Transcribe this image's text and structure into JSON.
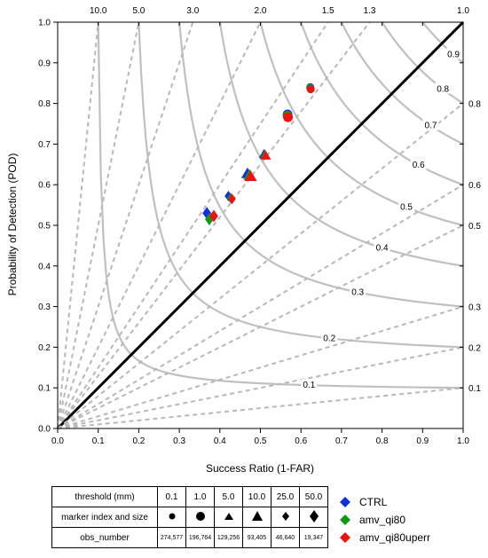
{
  "chart_data": {
    "type": "scatter",
    "title": "",
    "xlabel": "Success Ratio (1-FAR)",
    "ylabel": "Probability of Detection (POD)",
    "xlim": [
      0,
      1
    ],
    "ylim": [
      0,
      1
    ],
    "x_ticks": [
      "0.0",
      "0.1",
      "0.2",
      "0.3",
      "0.4",
      "0.5",
      "0.6",
      "0.7",
      "0.8",
      "0.9",
      "1.0"
    ],
    "y_ticks": [
      "0.0",
      "0.1",
      "0.2",
      "0.3",
      "0.4",
      "0.5",
      "0.6",
      "0.7",
      "0.8",
      "0.9",
      "1.0"
    ],
    "bias_lines": [
      {
        "value": 10.0,
        "label": "10.0"
      },
      {
        "value": 5.0,
        "label": "5.0"
      },
      {
        "value": 3.0,
        "label": "3.0"
      },
      {
        "value": 2.0,
        "label": "2.0"
      },
      {
        "value": 1.5,
        "label": "1.5"
      },
      {
        "value": 1.3,
        "label": "1.3"
      },
      {
        "value": 1.0,
        "label": "1.0"
      },
      {
        "value": 0.8,
        "label": "0.8"
      },
      {
        "value": 0.6,
        "label": "0.6"
      },
      {
        "value": 0.5,
        "label": "0.5"
      },
      {
        "value": 0.3,
        "label": "0.3"
      },
      {
        "value": 0.2,
        "label": "0.2"
      },
      {
        "value": 0.1,
        "label": "0.1"
      }
    ],
    "csi_contours": [
      "0.1",
      "0.2",
      "0.3",
      "0.4",
      "0.5",
      "0.6",
      "0.7",
      "0.8",
      "0.9"
    ],
    "thresholds": [
      "0.1",
      "1.0",
      "5.0",
      "10.0",
      "25.0",
      "50.0"
    ],
    "series": [
      {
        "name": "CTRL",
        "color": "#1030e0",
        "points": [
          {
            "x": 0.623,
            "y": 0.84
          },
          {
            "x": 0.567,
            "y": 0.773
          },
          {
            "x": 0.509,
            "y": 0.675
          },
          {
            "x": 0.468,
            "y": 0.627
          },
          {
            "x": 0.421,
            "y": 0.572
          },
          {
            "x": 0.368,
            "y": 0.53
          }
        ]
      },
      {
        "name": "amv_qi80",
        "color": "#119911",
        "points": [
          {
            "x": 0.623,
            "y": 0.838
          },
          {
            "x": 0.567,
            "y": 0.77
          },
          {
            "x": 0.511,
            "y": 0.673
          },
          {
            "x": 0.473,
            "y": 0.623
          },
          {
            "x": 0.427,
            "y": 0.567
          },
          {
            "x": 0.374,
            "y": 0.515
          }
        ]
      },
      {
        "name": "amv_qi80uperr",
        "color": "#ee1111",
        "points": [
          {
            "x": 0.624,
            "y": 0.835
          },
          {
            "x": 0.568,
            "y": 0.766
          },
          {
            "x": 0.513,
            "y": 0.671
          },
          {
            "x": 0.476,
            "y": 0.62
          },
          {
            "x": 0.43,
            "y": 0.565
          },
          {
            "x": 0.385,
            "y": 0.523
          }
        ]
      }
    ]
  },
  "legend_table": {
    "threshold_label": "threshold (mm)",
    "marker_label": "marker index and size",
    "obs_label": "obs_number",
    "thresholds": [
      "0.1",
      "1.0",
      "5.0",
      "10.0",
      "25.0",
      "50.0"
    ],
    "obs_numbers": [
      "274,577",
      "196,764",
      "129,256",
      "93,405",
      "46,640",
      "19,347"
    ],
    "marker_icons": [
      "circle-icon",
      "circle-icon",
      "triangle-icon",
      "triangle-icon",
      "diamond-icon",
      "diamond-icon"
    ]
  }
}
